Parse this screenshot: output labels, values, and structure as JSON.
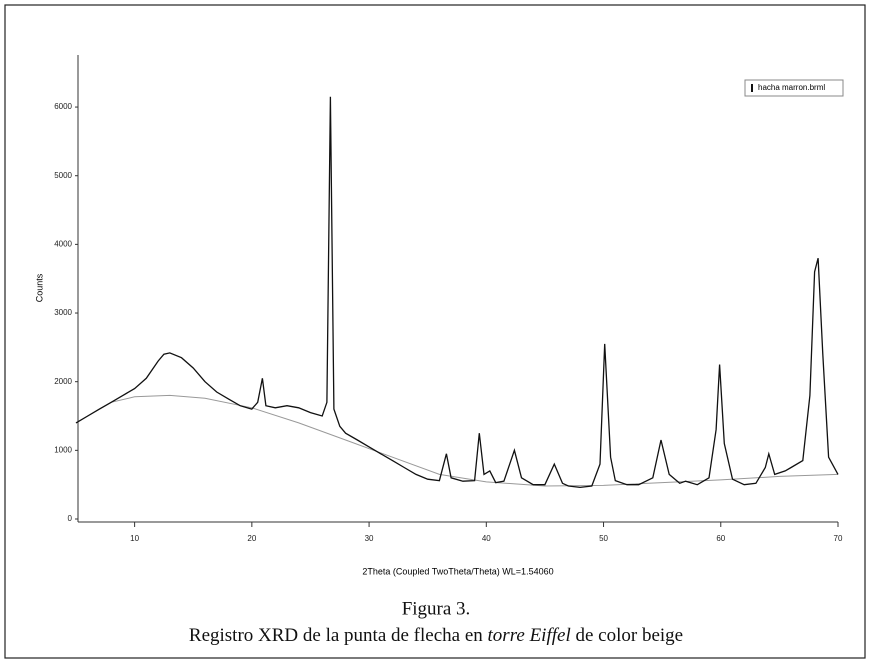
{
  "chart_data": {
    "type": "line",
    "xlabel": "2Theta (Coupled TwoTheta/Theta) WL=1.54060",
    "ylabel": "Counts",
    "xlim": [
      5,
      70
    ],
    "xticks": [
      10,
      20,
      30,
      40,
      50,
      60,
      70
    ],
    "ylim": [
      0,
      6700
    ],
    "yticks": [
      0,
      1000,
      2000,
      3000,
      4000,
      5000,
      6000
    ],
    "legend": "top-right",
    "series": [
      {
        "name": "hacha marron.brml",
        "color": "#111111",
        "x": [
          5,
          6,
          7,
          8,
          9,
          10,
          11,
          12,
          12.5,
          13,
          14,
          15,
          16,
          17,
          18,
          19,
          20,
          20.5,
          20.9,
          21.2,
          22,
          23,
          24,
          25,
          26,
          26.4,
          26.7,
          27,
          27.5,
          28,
          29,
          30,
          31,
          32,
          33,
          34,
          35,
          36,
          36.6,
          37,
          38,
          39,
          39.4,
          39.8,
          40.3,
          40.8,
          41.5,
          42.4,
          43,
          44,
          45,
          45.8,
          46.5,
          47,
          48,
          49,
          49.7,
          50.1,
          50.6,
          51,
          52,
          53,
          54.2,
          54.9,
          55.6,
          56.5,
          57,
          58,
          59,
          59.6,
          59.9,
          60.3,
          61,
          62,
          63,
          63.8,
          64.1,
          64.6,
          65.5,
          66,
          67,
          67.6,
          68,
          68.3,
          68.7,
          69.2,
          70
        ],
        "values": [
          1400,
          1500,
          1600,
          1700,
          1800,
          1900,
          2050,
          2300,
          2400,
          2420,
          2350,
          2200,
          2000,
          1850,
          1750,
          1650,
          1600,
          1700,
          2050,
          1650,
          1620,
          1650,
          1620,
          1550,
          1500,
          1700,
          6150,
          1600,
          1350,
          1250,
          1150,
          1050,
          950,
          850,
          750,
          650,
          580,
          560,
          950,
          600,
          550,
          560,
          1250,
          650,
          700,
          530,
          550,
          1000,
          600,
          500,
          500,
          800,
          520,
          480,
          460,
          480,
          800,
          2550,
          900,
          560,
          500,
          500,
          600,
          1150,
          650,
          520,
          550,
          500,
          600,
          1300,
          2250,
          1100,
          580,
          500,
          520,
          750,
          950,
          650,
          700,
          750,
          850,
          1800,
          3600,
          3800,
          2400,
          900,
          650
        ]
      },
      {
        "color": "#999999",
        "x": [
          5,
          8,
          10,
          13,
          16,
          20,
          24,
          28,
          32,
          36,
          40,
          45,
          50,
          55,
          60,
          65,
          70
        ],
        "values": [
          1400,
          1700,
          1780,
          1800,
          1760,
          1620,
          1400,
          1150,
          900,
          650,
          540,
          480,
          490,
          530,
          570,
          620,
          650
        ]
      }
    ]
  },
  "caption": {
    "label": "Figura 3.",
    "text": [
      "Registro XRD de la punta de flecha en ",
      "torre Eiffel",
      " de color beige"
    ]
  }
}
